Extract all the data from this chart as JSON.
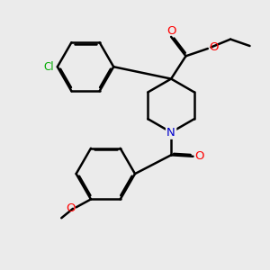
{
  "bg_color": "#ebebeb",
  "bond_color": "#000000",
  "bond_width": 1.8,
  "dbo": 0.055,
  "atom_colors": {
    "O": "#ff0000",
    "N": "#0000cc",
    "Cl": "#00aa00",
    "C": "#000000"
  },
  "font_size": 8.5,
  "fig_size": [
    3.0,
    3.0
  ],
  "dpi": 100,
  "xlim": [
    0,
    10
  ],
  "ylim": [
    0,
    10
  ]
}
